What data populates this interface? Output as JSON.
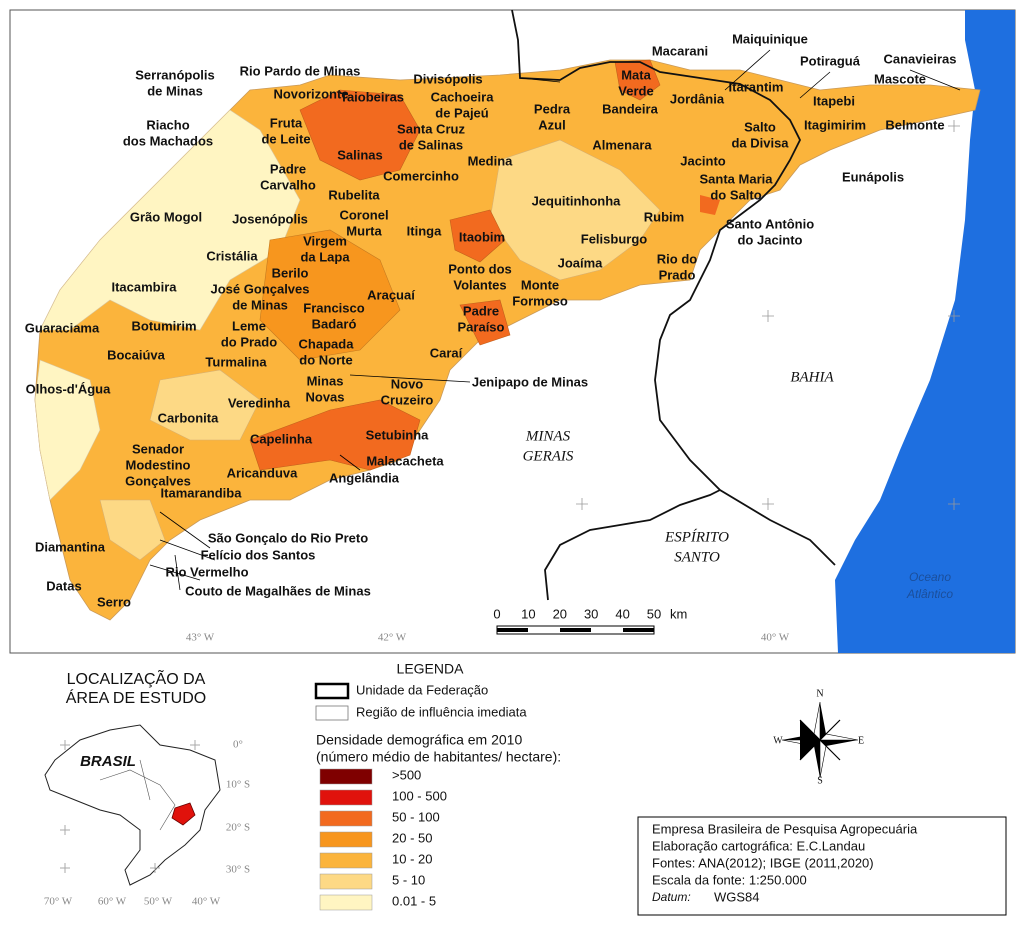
{
  "map": {
    "places": [
      [
        "Macarani"
      ],
      [
        "Maiquinique"
      ],
      [
        "Potiraguá"
      ],
      [
        "Canavieiras"
      ],
      [
        "Mascote"
      ],
      [
        "Serranópolis",
        "de Minas"
      ],
      [
        "Rio Pardo de Minas"
      ],
      [
        "Divisópolis"
      ],
      [
        "Mata",
        "Verde"
      ],
      [
        "Taiobeiras"
      ],
      [
        "Cachoeira",
        "de Pajeú"
      ],
      [
        "Jordânia"
      ],
      [
        "Itarantim"
      ],
      [
        "Itapebi"
      ],
      [
        "Novorizonte"
      ],
      [
        "Pedra",
        "Azul"
      ],
      [
        "Bandeira"
      ],
      [
        "Belmonte"
      ],
      [
        "Riacho",
        "dos Machados"
      ],
      [
        "Fruta",
        "de Leite"
      ],
      [
        "Santa Cruz",
        "de Salinas"
      ],
      [
        "Salto",
        "da Divisa"
      ],
      [
        "Itagimirim"
      ],
      [
        "Salinas"
      ],
      [
        "Almenara"
      ],
      [
        "Medina"
      ],
      [
        "Jacinto"
      ],
      [
        "Padre",
        "Carvalho"
      ],
      [
        "Comercinho"
      ],
      [
        "Santa Maria",
        "do Salto"
      ],
      [
        "Eunápolis"
      ],
      [
        "Rubelita"
      ],
      [
        "Jequitinhonha"
      ],
      [
        "Grão Mogol"
      ],
      [
        "Josenópolis"
      ],
      [
        "Coronel",
        "Murta"
      ],
      [
        "Rubim"
      ],
      [
        "Santo Antônio",
        "do Jacinto"
      ],
      [
        "Itinga"
      ],
      [
        "Itaobim"
      ],
      [
        "Felisburgo"
      ],
      [
        "Virgem",
        "da Lapa"
      ],
      [
        "Cristália"
      ],
      [
        "Rio do",
        "Prado"
      ],
      [
        "Joaíma"
      ],
      [
        "Ponto dos",
        "Volantes"
      ],
      [
        "Berilo"
      ],
      [
        "Itacambira"
      ],
      [
        "José Gonçalves",
        "de Minas"
      ],
      [
        "Araçuaí"
      ],
      [
        "Monte",
        "Formoso"
      ],
      [
        "Francisco",
        "Badaró"
      ],
      [
        "Botumirim"
      ],
      [
        "Guaraciama"
      ],
      [
        "Leme",
        "do Prado"
      ],
      [
        "Padre",
        "Paraíso"
      ],
      [
        "Chapada",
        "do Norte"
      ],
      [
        "Bocaiúva"
      ],
      [
        "Caraí"
      ],
      [
        "Turmalina"
      ],
      [
        "Jenipapo de Minas"
      ],
      [
        "Novo",
        "Cruzeiro"
      ],
      [
        "Minas",
        "Novas"
      ],
      [
        "Olhos-d'Água"
      ],
      [
        "Veredinha"
      ],
      [
        "Carbonita"
      ],
      [
        "Setubinha"
      ],
      [
        "Capelinha"
      ],
      [
        "Senador",
        "Modestino",
        "Gonçalves"
      ],
      [
        "Malacacheta"
      ],
      [
        "Aricanduva"
      ],
      [
        "Angelândia"
      ],
      [
        "Itamarandiba"
      ],
      [
        "São Gonçalo do Rio Preto"
      ],
      [
        "Diamantina"
      ],
      [
        "Felício dos Santos"
      ],
      [
        "Rio Vermelho"
      ],
      [
        "Datas"
      ],
      [
        "Couto de Magalhães de Minas"
      ],
      [
        "Serro"
      ]
    ],
    "states": [
      [
        "BAHIA"
      ],
      [
        "MINAS",
        "GERAIS"
      ],
      [
        "ESPÍRITO",
        "SANTO"
      ]
    ],
    "ocean": [
      "Oceano",
      "Atlântico"
    ],
    "longitudes": [
      "43° W",
      "42° W",
      "40° W"
    ],
    "scale_bar": {
      "ticks": [
        0,
        10,
        20,
        30,
        40,
        50
      ],
      "unit": "km"
    }
  },
  "inset": {
    "title": [
      "LOCALIZAÇÃO DA",
      "ÁREA DE ESTUDO"
    ],
    "country": "BRASIL",
    "latitudes": [
      "0°",
      "10° S",
      "20° S",
      "30° S"
    ],
    "longitudes": [
      "70° W",
      "60° W",
      "50° W",
      "40° W"
    ]
  },
  "legend": {
    "title": "LEGENDA",
    "lines": [
      {
        "label": "Unidade da Federação"
      },
      {
        "label": "Região de influência imediata"
      }
    ],
    "density_title": [
      "Densidade demográfica em 2010",
      "(número médio de habitantes/ hectare):"
    ],
    "classes": [
      {
        "label": ">500",
        "color": "#7f0000"
      },
      {
        "label": "100 - 500",
        "color": "#e0120c"
      },
      {
        "label": "50 - 100",
        "color": "#f26a1f"
      },
      {
        "label": "20 - 50",
        "color": "#f7961e"
      },
      {
        "label": "10 - 20",
        "color": "#fbb43c"
      },
      {
        "label": "5 - 10",
        "color": "#fdd985"
      },
      {
        "label": "0.01 - 5",
        "color": "#fff5c2"
      }
    ]
  },
  "compass": {
    "n": "N",
    "e": "E",
    "s": "S",
    "w": "W"
  },
  "credits": {
    "lines": [
      "Empresa Brasileira de Pesquisa Agropecuária",
      "Elaboração cartográfica: E.C.Landau",
      "Fontes: ANA(2012); IBGE (2011,2020)",
      "Escala da fonte:  1:250.000"
    ],
    "datum_label": "Datum:",
    "datum": "WGS84"
  }
}
